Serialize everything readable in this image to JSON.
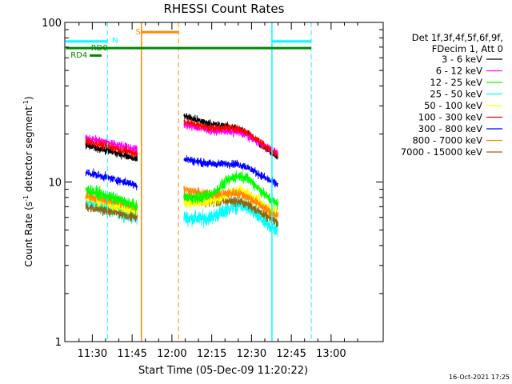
{
  "chart_data": {
    "type": "line",
    "title": "RHESSI Count Rates",
    "xlabel": "Start Time (05-Dec-09 11:20:22)",
    "ylabel_main": "Count Rate (s",
    "ylabel_exp1": "-1",
    "ylabel_mid": " detector segment",
    "ylabel_exp2": "-1",
    "ylabel_end": ")",
    "xlim_minutes": [
      -0.37,
      119.63
    ],
    "ylim": [
      1,
      100
    ],
    "log_y": true,
    "x_ticks": [
      {
        "minute": 10,
        "label": "11:30"
      },
      {
        "minute": 25,
        "label": "11:45"
      },
      {
        "minute": 40,
        "label": "12:00"
      },
      {
        "minute": 55,
        "label": "12:15"
      },
      {
        "minute": 70,
        "label": "12:30"
      },
      {
        "minute": 85,
        "label": "12:45"
      },
      {
        "minute": 100,
        "label": "13:00"
      }
    ],
    "y_ticks": [
      {
        "value": 1,
        "label": "1"
      },
      {
        "value": 10,
        "label": "10"
      },
      {
        "value": 100,
        "label": "100"
      }
    ],
    "legend_header": [
      "Det 1f,3f,4f,5f,6f,9f,",
      "FDecim 1, Att 0"
    ],
    "segments": [
      [
        7.5,
        27.0
      ],
      [
        44.5,
        80.0
      ]
    ],
    "series": [
      {
        "name": "3 - 6 keV",
        "color": "#000000",
        "start": [
          17.0,
          26.0
        ],
        "end": [
          14.0,
          14.0
        ],
        "bump": [
          0,
          2.5
        ],
        "noise": 0.05,
        "offset": [
          0,
          0
        ]
      },
      {
        "name": "6 - 12 keV",
        "color": "#ff00ff",
        "start": [
          19.0,
          23.0
        ],
        "end": [
          16.0,
          15.0
        ],
        "bump": [
          0,
          2.0
        ],
        "noise": 0.05,
        "offset": [
          0,
          0
        ]
      },
      {
        "name": "12 - 25 keV",
        "color": "#00ff00",
        "start": [
          9.0,
          8.0
        ],
        "end": [
          7.0,
          7.0
        ],
        "bump": [
          0,
          3.5
        ],
        "noise": 0.07,
        "offset": [
          0,
          0
        ]
      },
      {
        "name": "25 - 50 keV",
        "color": "#00ffff",
        "start": [
          7.5,
          6.0
        ],
        "end": [
          6.0,
          4.8
        ],
        "bump": [
          0,
          1.8
        ],
        "noise": 0.09,
        "offset": [
          0,
          0
        ]
      },
      {
        "name": "50 - 100 keV",
        "color": "#ffff00",
        "start": [
          8.0,
          7.5
        ],
        "end": [
          6.5,
          6.2
        ],
        "bump": [
          0,
          2.0
        ],
        "noise": 0.07,
        "offset": [
          0,
          0
        ]
      },
      {
        "name": "100 - 300 keV",
        "color": "#ff0000",
        "start": [
          18.0,
          24.0
        ],
        "end": [
          15.0,
          14.5
        ],
        "bump": [
          0,
          3.0
        ],
        "noise": 0.05,
        "offset": [
          0,
          0
        ]
      },
      {
        "name": "300 - 800 keV",
        "color": "#0000ff",
        "start": [
          11.5,
          14.0
        ],
        "end": [
          9.5,
          9.5
        ],
        "bump": [
          0,
          1.5
        ],
        "noise": 0.05,
        "offset": [
          0,
          0
        ]
      },
      {
        "name": "800 - 7000 keV",
        "color": "#ff8800",
        "start": [
          8.2,
          9.0
        ],
        "end": [
          7.0,
          6.0
        ],
        "bump": [
          0,
          1.2
        ],
        "noise": 0.06,
        "offset": [
          0,
          0
        ]
      },
      {
        "name": "7000 - 15000 keV",
        "color": "#8b6914",
        "start": [
          7.0,
          8.0
        ],
        "end": [
          6.0,
          5.5
        ],
        "bump": [
          0,
          1.0
        ],
        "noise": 0.06,
        "offset": [
          0,
          0
        ]
      }
    ],
    "vertical_lines": [
      {
        "minute": 15.7,
        "color": "#00ffff",
        "dashed": true
      },
      {
        "minute": 28.5,
        "color": "#ff8800",
        "dashed": false
      },
      {
        "minute": 42.5,
        "color": "#ff8800",
        "dashed": true
      },
      {
        "minute": 77.7,
        "color": "#00ffff",
        "dashed": false
      },
      {
        "minute": 92.5,
        "color": "#00ffff",
        "dashed": true
      }
    ],
    "flags": [
      {
        "label": "N",
        "color": "#00ffff",
        "x": [
          0,
          15.7
        ],
        "y": 76,
        "label_x": 17.5,
        "label_y": 78
      },
      {
        "label": "N",
        "color": "#00ffff",
        "x": [
          77.7,
          92.5
        ],
        "y": 76,
        "label_x": null,
        "label_y": null
      },
      {
        "label": "S",
        "color": "#ff8800",
        "x": [
          28.5,
          42.5
        ],
        "y": 87,
        "label_x": 26.3,
        "label_y": 88
      },
      {
        "label": "RD0",
        "color": "#008800",
        "x": [
          0,
          92.5
        ],
        "y": 69,
        "label_x": 9.5,
        "label_y": 70
      },
      {
        "label": "RD4",
        "color": "#008800",
        "x": [
          9.0,
          13.5
        ],
        "y": 62,
        "label_x": 1.8,
        "label_y": 63
      }
    ],
    "footer_date": "16-Oct-2021 17:25"
  }
}
